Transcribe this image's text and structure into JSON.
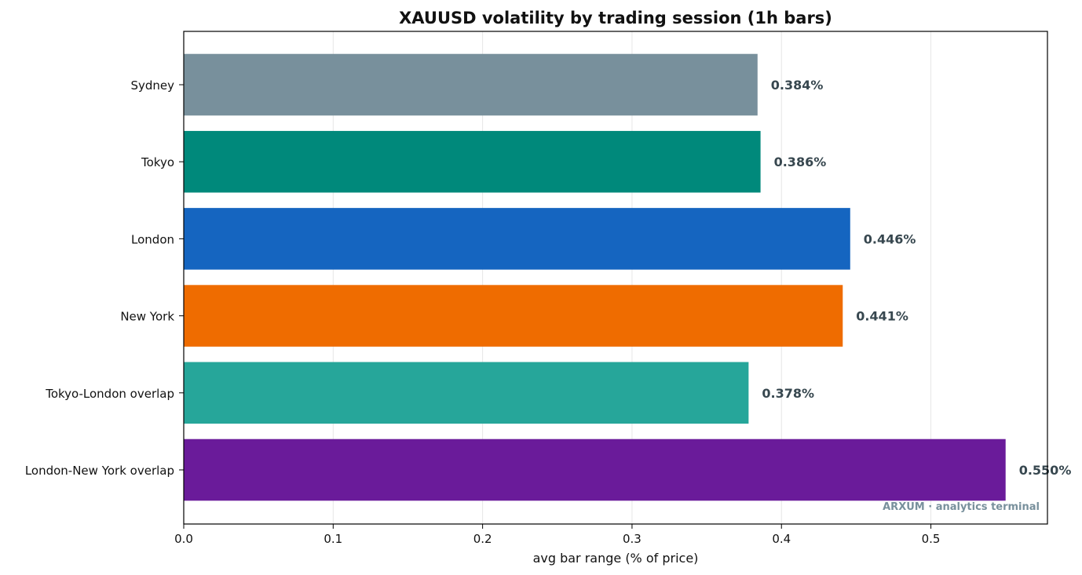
{
  "chart_data": {
    "type": "bar",
    "orientation": "horizontal",
    "title": "XAUUSD volatility by trading session (1h bars)",
    "xlabel": "avg bar range (% of price)",
    "ylabel": "",
    "xlim": [
      0,
      0.578
    ],
    "x_ticks": [
      "0.0",
      "0.1",
      "0.2",
      "0.3",
      "0.4",
      "0.5"
    ],
    "grid": "vertical",
    "categories": [
      "Sydney",
      "Tokyo",
      "London",
      "New York",
      "Tokyo-London overlap",
      "London-New York overlap"
    ],
    "values": [
      0.384,
      0.386,
      0.446,
      0.441,
      0.378,
      0.55
    ],
    "data_labels": [
      "0.384%",
      "0.386%",
      "0.446%",
      "0.441%",
      "0.378%",
      "0.550%"
    ],
    "colors": [
      "#78909c",
      "#00897b",
      "#1565c0",
      "#ef6c00",
      "#26a69a",
      "#6a1b9a"
    ],
    "watermark": "ARXUM · analytics terminal"
  }
}
